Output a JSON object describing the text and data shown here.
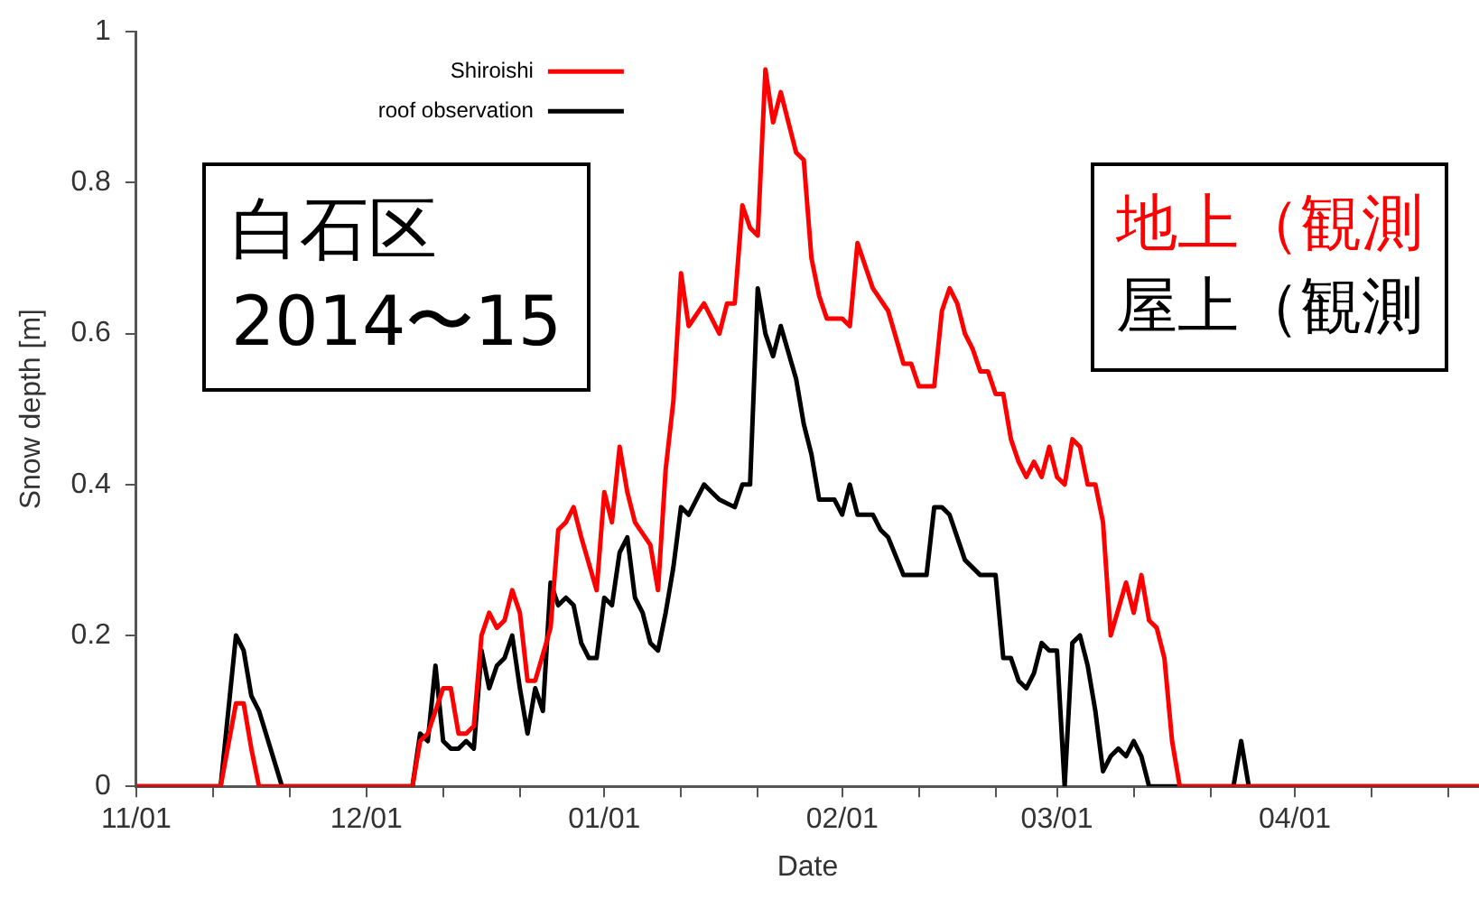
{
  "chart_data": {
    "type": "line",
    "xlabel": "Date",
    "ylabel": "Snow depth [m]",
    "xlim": [
      "2014-11-01",
      "2015-04-25"
    ],
    "xticks": [
      {
        "value": "2014-11-01",
        "label": "11/01"
      },
      {
        "value": "2014-11-11",
        "label": null
      },
      {
        "value": "2014-11-21",
        "label": null
      },
      {
        "value": "2014-12-01",
        "label": "12/01"
      },
      {
        "value": "2014-12-11",
        "label": null
      },
      {
        "value": "2014-12-21",
        "label": null
      },
      {
        "value": "2015-01-01",
        "label": "01/01"
      },
      {
        "value": "2015-01-11",
        "label": null
      },
      {
        "value": "2015-01-21",
        "label": null
      },
      {
        "value": "2015-02-01",
        "label": "02/01"
      },
      {
        "value": "2015-02-11",
        "label": null
      },
      {
        "value": "2015-02-21",
        "label": null
      },
      {
        "value": "2015-03-01",
        "label": "03/01"
      },
      {
        "value": "2015-03-11",
        "label": null
      },
      {
        "value": "2015-03-21",
        "label": null
      },
      {
        "value": "2015-04-01",
        "label": "04/01"
      },
      {
        "value": "2015-04-11",
        "label": null
      },
      {
        "value": "2015-04-21",
        "label": null
      }
    ],
    "ylim": [
      0,
      1
    ],
    "yticks": [
      0,
      0.2,
      0.4,
      0.6,
      0.8,
      1
    ],
    "legend": "top left",
    "marker": "none",
    "line_style": "solid",
    "annotations": [
      "白石区",
      "2014〜15",
      "地上（観測",
      "屋上（観測"
    ],
    "series": [
      {
        "name": "Shiroishi",
        "color": "#ff0000",
        "x": [
          "2014-11-01",
          "2014-11-12",
          "2014-11-14",
          "2014-11-15",
          "2014-11-16",
          "2014-11-17",
          "2014-12-07",
          "2014-12-08",
          "2014-12-09",
          "2014-12-11",
          "2014-12-12",
          "2014-12-13",
          "2014-12-14",
          "2014-12-15",
          "2014-12-16",
          "2014-12-17",
          "2014-12-18",
          "2014-12-19",
          "2014-12-20",
          "2014-12-21",
          "2014-12-22",
          "2014-12-23",
          "2014-12-25",
          "2014-12-26",
          "2014-12-27",
          "2014-12-28",
          "2014-12-29",
          "2014-12-31",
          "2015-01-01",
          "2015-01-02",
          "2015-01-03",
          "2015-01-04",
          "2015-01-05",
          "2015-01-07",
          "2015-01-08",
          "2015-01-09",
          "2015-01-10",
          "2015-01-11",
          "2015-01-12",
          "2015-01-14",
          "2015-01-16",
          "2015-01-17",
          "2015-01-18",
          "2015-01-19",
          "2015-01-20",
          "2015-01-21",
          "2015-01-22",
          "2015-01-23",
          "2015-01-24",
          "2015-01-25",
          "2015-01-26",
          "2015-01-27",
          "2015-01-28",
          "2015-01-29",
          "2015-01-30",
          "2015-01-31",
          "2015-02-01",
          "2015-02-02",
          "2015-02-03",
          "2015-02-05",
          "2015-02-07",
          "2015-02-09",
          "2015-02-10",
          "2015-02-11",
          "2015-02-13",
          "2015-02-14",
          "2015-02-15",
          "2015-02-16",
          "2015-02-17",
          "2015-02-18",
          "2015-02-19",
          "2015-02-20",
          "2015-02-21",
          "2015-02-22",
          "2015-02-23",
          "2015-02-24",
          "2015-02-25",
          "2015-02-26",
          "2015-02-27",
          "2015-02-28",
          "2015-03-01",
          "2015-03-02",
          "2015-03-03",
          "2015-03-04",
          "2015-03-05",
          "2015-03-06",
          "2015-03-07",
          "2015-03-08",
          "2015-03-10",
          "2015-03-11",
          "2015-03-12",
          "2015-03-13",
          "2015-03-14",
          "2015-03-15",
          "2015-03-16",
          "2015-03-17",
          "2015-04-25"
        ],
        "values": [
          0,
          0,
          0.11,
          0.11,
          0.05,
          0,
          0,
          0.06,
          0.07,
          0.13,
          0.13,
          0.07,
          0.07,
          0.08,
          0.2,
          0.23,
          0.21,
          0.22,
          0.26,
          0.23,
          0.14,
          0.14,
          0.21,
          0.34,
          0.35,
          0.37,
          0.33,
          0.26,
          0.39,
          0.35,
          0.45,
          0.39,
          0.35,
          0.32,
          0.26,
          0.42,
          0.51,
          0.68,
          0.61,
          0.64,
          0.6,
          0.64,
          0.64,
          0.77,
          0.74,
          0.73,
          0.95,
          0.88,
          0.92,
          0.88,
          0.84,
          0.83,
          0.7,
          0.65,
          0.62,
          0.62,
          0.62,
          0.61,
          0.72,
          0.66,
          0.63,
          0.56,
          0.56,
          0.53,
          0.53,
          0.63,
          0.66,
          0.64,
          0.6,
          0.58,
          0.55,
          0.55,
          0.52,
          0.52,
          0.46,
          0.43,
          0.41,
          0.43,
          0.41,
          0.45,
          0.41,
          0.4,
          0.46,
          0.45,
          0.4,
          0.4,
          0.35,
          0.2,
          0.27,
          0.23,
          0.28,
          0.22,
          0.21,
          0.17,
          0.06,
          0,
          0
        ]
      },
      {
        "name": "roof observation",
        "color": "#000000",
        "x": [
          "2014-11-01",
          "2014-11-12",
          "2014-11-14",
          "2014-11-15",
          "2014-11-16",
          "2014-11-17",
          "2014-11-20",
          "2014-12-07",
          "2014-12-08",
          "2014-12-09",
          "2014-12-10",
          "2014-12-11",
          "2014-12-12",
          "2014-12-13",
          "2014-12-14",
          "2014-12-15",
          "2014-12-16",
          "2014-12-17",
          "2014-12-18",
          "2014-12-19",
          "2014-12-20",
          "2014-12-21",
          "2014-12-22",
          "2014-12-23",
          "2014-12-24",
          "2014-12-25",
          "2014-12-26",
          "2014-12-27",
          "2014-12-28",
          "2014-12-29",
          "2014-12-30",
          "2014-12-31",
          "2015-01-01",
          "2015-01-02",
          "2015-01-03",
          "2015-01-04",
          "2015-01-05",
          "2015-01-06",
          "2015-01-07",
          "2015-01-08",
          "2015-01-09",
          "2015-01-10",
          "2015-01-11",
          "2015-01-12",
          "2015-01-14",
          "2015-01-15",
          "2015-01-16",
          "2015-01-18",
          "2015-01-19",
          "2015-01-20",
          "2015-01-21",
          "2015-01-22",
          "2015-01-23",
          "2015-01-24",
          "2015-01-26",
          "2015-01-27",
          "2015-01-28",
          "2015-01-29",
          "2015-01-31",
          "2015-02-01",
          "2015-02-02",
          "2015-02-03",
          "2015-02-05",
          "2015-02-06",
          "2015-02-07",
          "2015-02-09",
          "2015-02-12",
          "2015-02-13",
          "2015-02-14",
          "2015-02-15",
          "2015-02-17",
          "2015-02-19",
          "2015-02-21",
          "2015-02-22",
          "2015-02-23",
          "2015-02-24",
          "2015-02-25",
          "2015-02-26",
          "2015-02-27",
          "2015-02-28",
          "2015-03-01",
          "2015-03-02",
          "2015-03-03",
          "2015-03-04",
          "2015-03-05",
          "2015-03-06",
          "2015-03-07",
          "2015-03-08",
          "2015-03-09",
          "2015-03-10",
          "2015-03-11",
          "2015-03-12",
          "2015-03-13",
          "2015-03-24",
          "2015-03-25",
          "2015-03-26",
          "2015-04-25"
        ],
        "values": [
          0,
          0,
          0.2,
          0.18,
          0.12,
          0.1,
          0,
          0,
          0.07,
          0.06,
          0.16,
          0.06,
          0.05,
          0.05,
          0.06,
          0.05,
          0.18,
          0.13,
          0.16,
          0.17,
          0.2,
          0.13,
          0.07,
          0.13,
          0.1,
          0.27,
          0.24,
          0.25,
          0.24,
          0.19,
          0.17,
          0.17,
          0.25,
          0.24,
          0.31,
          0.33,
          0.25,
          0.23,
          0.19,
          0.18,
          0.23,
          0.29,
          0.37,
          0.36,
          0.4,
          0.39,
          0.38,
          0.37,
          0.4,
          0.4,
          0.66,
          0.6,
          0.57,
          0.61,
          0.54,
          0.48,
          0.44,
          0.38,
          0.38,
          0.36,
          0.4,
          0.36,
          0.36,
          0.34,
          0.33,
          0.28,
          0.28,
          0.37,
          0.37,
          0.36,
          0.3,
          0.28,
          0.28,
          0.17,
          0.17,
          0.14,
          0.13,
          0.15,
          0.19,
          0.18,
          0.18,
          0,
          0.19,
          0.2,
          0.16,
          0.1,
          0.02,
          0.04,
          0.05,
          0.04,
          0.06,
          0.04,
          0,
          0,
          0.06,
          0,
          0
        ]
      }
    ]
  }
}
